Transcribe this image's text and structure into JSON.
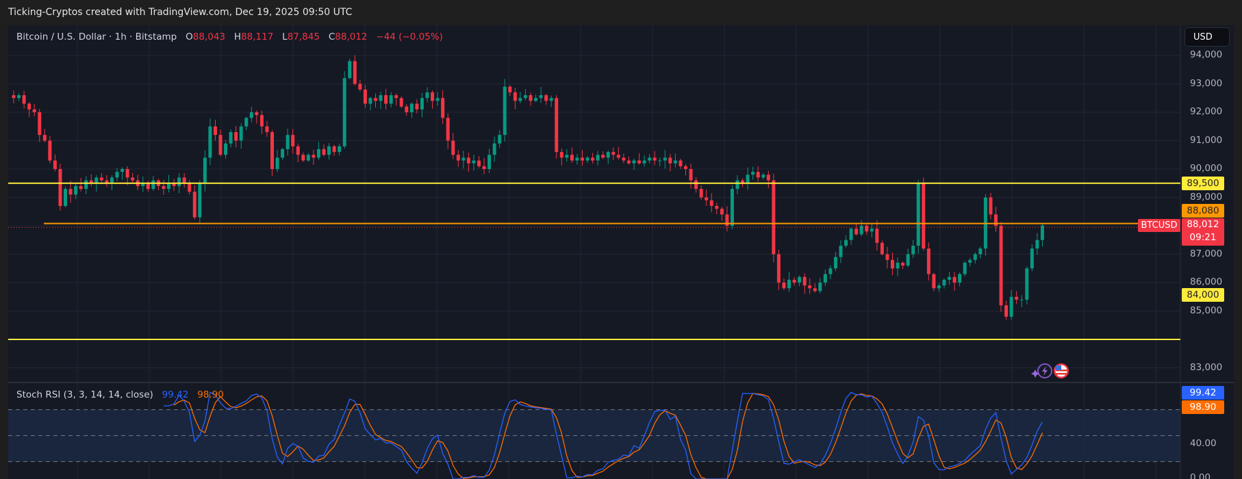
{
  "header": {
    "title": "Ticking-Cryptos created with TradingView.com, Dec 19, 2025 09:50 UTC"
  },
  "legend": {
    "symbol": "Bitcoin / U.S. Dollar · 1h · Bitstamp",
    "o_label": "O",
    "o": "88,043",
    "h_label": "H",
    "h": "88,117",
    "l_label": "L",
    "l": "87,845",
    "c_label": "C",
    "c": "88,012",
    "change": "−44 (−0.05%)"
  },
  "currency_button": "USD",
  "price_axis": {
    "ticks": [
      "94,000",
      "93,000",
      "92,000",
      "91,000",
      "90,000",
      "89,000",
      "87,000",
      "86,000",
      "85,000",
      "83,000"
    ]
  },
  "levels": [
    {
      "price": 89500,
      "label": "89,500",
      "color": "#ffeb3b"
    },
    {
      "price": 88080,
      "label": "88,080",
      "color": "#ff9800"
    },
    {
      "price": 84000,
      "label": "84,000",
      "color": "#ffeb3b"
    }
  ],
  "last_price": {
    "symbol": "BTCUSD",
    "price": "88,012",
    "countdown": "09:21",
    "value": 88012,
    "color": "#f23645"
  },
  "stoch_rsi": {
    "label": "Stoch RSI (3, 3, 14, 14, close)",
    "k": "99.42",
    "d": "98.90",
    "k_color": "#2962ff",
    "d_color": "#ff6d00",
    "axis_tick": "40.00",
    "axis_tick_bottom": "0.00",
    "bands": [
      80,
      50,
      20
    ]
  },
  "chart_data": {
    "type": "candlestick",
    "interval": "1h",
    "ylim": [
      82700,
      94400
    ],
    "up_color": "#089981",
    "down_color": "#f23645",
    "close": [
      92500,
      92600,
      92300,
      92100,
      92000,
      91200,
      91000,
      90300,
      90000,
      88700,
      89300,
      89100,
      89400,
      89300,
      89600,
      89500,
      89700,
      89600,
      89500,
      89700,
      89900,
      90000,
      89700,
      89600,
      89400,
      89500,
      89300,
      89600,
      89400,
      89300,
      89500,
      89400,
      89700,
      89500,
      89200,
      88300,
      89500,
      90400,
      91500,
      91200,
      90500,
      90900,
      91300,
      91000,
      91500,
      91800,
      92000,
      91900,
      91500,
      91300,
      90000,
      90400,
      90700,
      91200,
      90800,
      90500,
      90300,
      90500,
      90400,
      90700,
      90500,
      90800,
      90600,
      90800,
      93200,
      93800,
      93000,
      92800,
      92300,
      92500,
      92400,
      92600,
      92300,
      92600,
      92500,
      92200,
      92000,
      92300,
      92100,
      92500,
      92700,
      92400,
      92500,
      91800,
      91000,
      90500,
      90300,
      90400,
      90200,
      90300,
      90100,
      90000,
      90500,
      90900,
      91200,
      92900,
      92700,
      92400,
      92500,
      92600,
      92400,
      92500,
      92600,
      92400,
      92500,
      90600,
      90400,
      90500,
      90300,
      90400,
      90300,
      90400,
      90300,
      90500,
      90400,
      90600,
      90500,
      90400,
      90300,
      90200,
      90300,
      90200,
      90300,
      90400,
      90300,
      90300,
      90400,
      90200,
      90300,
      90100,
      90000,
      89600,
      89300,
      89000,
      88900,
      88700,
      88600,
      88400,
      88000,
      89300,
      89600,
      89500,
      89800,
      89900,
      89700,
      89800,
      89600,
      87000,
      86000,
      85800,
      86100,
      86000,
      86200,
      85900,
      85800,
      85700,
      86000,
      86300,
      86500,
      86900,
      87300,
      87500,
      87900,
      87700,
      88000,
      87800,
      87900,
      87400,
      87000,
      86800,
      86500,
      86700,
      86600,
      87000,
      87300,
      89500,
      87200,
      86300,
      85800,
      85900,
      86100,
      86200,
      86000,
      86300,
      86700,
      86800,
      87000,
      87200,
      89000,
      88400,
      88000,
      85200,
      84800,
      85500,
      85400,
      85400,
      86500,
      87200,
      87500,
      88012
    ]
  }
}
